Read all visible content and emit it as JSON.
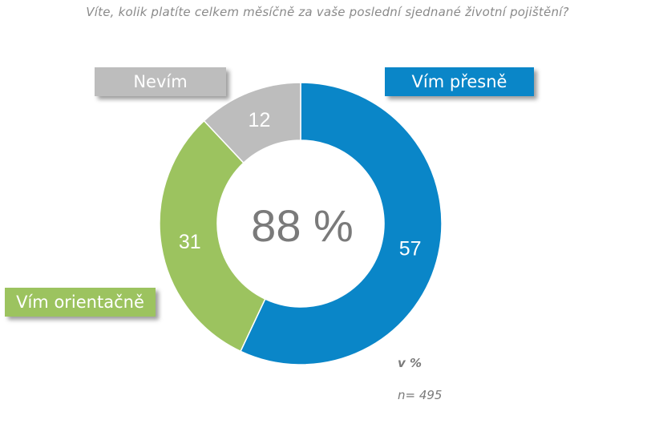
{
  "chart_data": {
    "type": "pie",
    "title": "Víte, kolik platíte celkem měsíčně za vaše poslední sjednané životní pojištění?",
    "categories": [
      "Vím přesně",
      "Vím orientačně",
      "Nevím"
    ],
    "values": [
      57,
      31,
      12
    ],
    "colors": [
      "#0a86c8",
      "#9cc35f",
      "#bdbdbd"
    ],
    "center_label": "88 %",
    "unit_note": "v %",
    "sample_note": "n= 495",
    "legend_placement": "labels beside segments"
  }
}
